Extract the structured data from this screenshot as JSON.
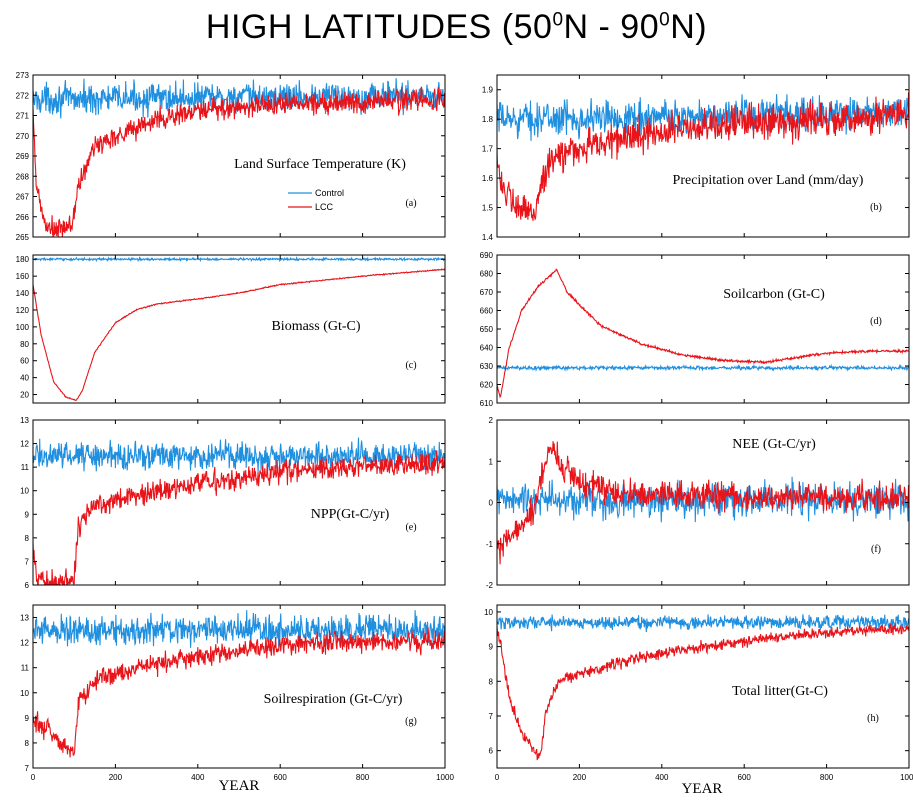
{
  "title": {
    "main": "HIGH LATITUDES (50",
    "sup1": "0",
    "mid": "N - 90",
    "sup2": "0",
    "end": "N)"
  },
  "colors": {
    "control": "#1f8fe0",
    "lcc": "#e8141a",
    "axis": "#000000"
  },
  "chart_data": [
    {
      "id": "a",
      "type": "line",
      "title": "Land Surface Temperature (K)",
      "tag": "(a)",
      "xlim": [
        0,
        1000
      ],
      "ylim": [
        265,
        273
      ],
      "yticks": [
        265,
        266,
        267,
        268,
        269,
        270,
        271,
        272,
        273
      ],
      "xticks": [],
      "xlabel": "",
      "legend": {
        "position": "center-left",
        "entries": [
          "Control",
          "LCC"
        ]
      },
      "series": [
        {
          "name": "Control",
          "noise": 0.45,
          "points": [
            [
              0,
              271.8
            ],
            [
              1000,
              272.0
            ]
          ]
        },
        {
          "name": "LCC",
          "noise": 0.35,
          "points": [
            [
              0,
              271.0
            ],
            [
              8,
              267.5
            ],
            [
              30,
              265.5
            ],
            [
              60,
              265.3
            ],
            [
              95,
              265.6
            ],
            [
              110,
              267.5
            ],
            [
              150,
              269.5
            ],
            [
              200,
              270.0
            ],
            [
              300,
              270.8
            ],
            [
              400,
              271.2
            ],
            [
              600,
              271.6
            ],
            [
              800,
              271.7
            ],
            [
              1000,
              271.8
            ]
          ]
        }
      ]
    },
    {
      "id": "b",
      "type": "line",
      "title": "Precipitation over Land (mm/day)",
      "tag": "(b)",
      "xlim": [
        0,
        1000
      ],
      "ylim": [
        1.4,
        1.95
      ],
      "yticks": [
        1.4,
        1.5,
        1.6,
        1.7,
        1.8,
        1.9
      ],
      "xticks": [],
      "xlabel": "",
      "series": [
        {
          "name": "Control",
          "noise": 0.035,
          "points": [
            [
              0,
              1.8
            ],
            [
              1000,
              1.82
            ]
          ]
        },
        {
          "name": "LCC",
          "noise": 0.035,
          "points": [
            [
              0,
              1.7
            ],
            [
              10,
              1.58
            ],
            [
              40,
              1.5
            ],
            [
              90,
              1.48
            ],
            [
              110,
              1.6
            ],
            [
              150,
              1.68
            ],
            [
              250,
              1.72
            ],
            [
              400,
              1.76
            ],
            [
              600,
              1.79
            ],
            [
              1000,
              1.81
            ]
          ]
        }
      ]
    },
    {
      "id": "c",
      "type": "line",
      "title": "Biomass (Gt-C)",
      "tag": "(c)",
      "xlim": [
        0,
        1000
      ],
      "ylim": [
        10,
        185
      ],
      "yticks": [
        20,
        40,
        60,
        80,
        100,
        120,
        140,
        160,
        180
      ],
      "xticks": [],
      "xlabel": "",
      "series": [
        {
          "name": "Control",
          "noise": 0.8,
          "points": [
            [
              0,
              180
            ],
            [
              1000,
              180
            ]
          ]
        },
        {
          "name": "LCC",
          "noise": 0.4,
          "points": [
            [
              0,
              150
            ],
            [
              20,
              90
            ],
            [
              50,
              35
            ],
            [
              80,
              17
            ],
            [
              105,
              13
            ],
            [
              120,
              25
            ],
            [
              150,
              70
            ],
            [
              200,
              105
            ],
            [
              250,
              120
            ],
            [
              300,
              127
            ],
            [
              400,
              133
            ],
            [
              500,
              140
            ],
            [
              600,
              150
            ],
            [
              800,
              160
            ],
            [
              1000,
              168
            ]
          ]
        }
      ]
    },
    {
      "id": "d",
      "type": "line",
      "title": "Soilcarbon (Gt-C)",
      "tag": "(d)",
      "xlim": [
        0,
        1000
      ],
      "ylim": [
        610,
        690
      ],
      "yticks": [
        610,
        620,
        630,
        640,
        650,
        660,
        670,
        680,
        690
      ],
      "xticks": [],
      "xlabel": "",
      "series": [
        {
          "name": "Control",
          "noise": 0.6,
          "points": [
            [
              0,
              629
            ],
            [
              1000,
              629
            ]
          ]
        },
        {
          "name": "LCC",
          "noise": 0.4,
          "points": [
            [
              0,
              620
            ],
            [
              8,
              613
            ],
            [
              30,
              640
            ],
            [
              60,
              660
            ],
            [
              100,
              673
            ],
            [
              145,
              682
            ],
            [
              170,
              670
            ],
            [
              250,
              652
            ],
            [
              350,
              642
            ],
            [
              450,
              636
            ],
            [
              550,
              633
            ],
            [
              650,
              632
            ],
            [
              800,
              637
            ],
            [
              900,
              638
            ],
            [
              1000,
              638
            ]
          ]
        }
      ]
    },
    {
      "id": "e",
      "type": "line",
      "title": "NPP(Gt-C/yr)",
      "tag": "(e)",
      "xlim": [
        0,
        1000
      ],
      "ylim": [
        6,
        13
      ],
      "yticks": [
        6,
        7,
        8,
        9,
        10,
        11,
        12,
        13
      ],
      "xticks": [],
      "xlabel": "",
      "series": [
        {
          "name": "Control",
          "noise": 0.35,
          "points": [
            [
              0,
              11.5
            ],
            [
              1000,
              11.5
            ]
          ]
        },
        {
          "name": "LCC",
          "noise": 0.3,
          "points": [
            [
              0,
              7.5
            ],
            [
              10,
              6.4
            ],
            [
              40,
              6.1
            ],
            [
              100,
              6.1
            ],
            [
              110,
              8.5
            ],
            [
              150,
              9.4
            ],
            [
              250,
              9.8
            ],
            [
              400,
              10.3
            ],
            [
              600,
              10.8
            ],
            [
              800,
              11.0
            ],
            [
              1000,
              11.2
            ]
          ]
        }
      ]
    },
    {
      "id": "f",
      "type": "line",
      "title": "NEE (Gt-C/yr)",
      "tag": "(f)",
      "xlim": [
        0,
        1000
      ],
      "ylim": [
        -2,
        2
      ],
      "yticks": [
        -2,
        -1,
        0,
        1,
        2
      ],
      "xticks": [],
      "xlabel": "",
      "series": [
        {
          "name": "Control",
          "noise": 0.25,
          "points": [
            [
              0,
              0.05
            ],
            [
              1000,
              0.05
            ]
          ]
        },
        {
          "name": "LCC",
          "noise": 0.2,
          "points": [
            [
              0,
              -1.2
            ],
            [
              15,
              -1.0
            ],
            [
              60,
              -0.6
            ],
            [
              90,
              -0.2
            ],
            [
              110,
              0.8
            ],
            [
              130,
              1.4
            ],
            [
              150,
              1.0
            ],
            [
              200,
              0.5
            ],
            [
              300,
              0.2
            ],
            [
              500,
              0.15
            ],
            [
              1000,
              0.1
            ]
          ]
        }
      ]
    },
    {
      "id": "g",
      "type": "line",
      "title": "Soilrespiration (Gt-C/yr)",
      "tag": "(g)",
      "xlim": [
        0,
        1000
      ],
      "ylim": [
        7,
        13.5
      ],
      "yticks": [
        7,
        8,
        9,
        10,
        11,
        12,
        13
      ],
      "xticks": [
        0,
        200,
        400,
        600,
        800,
        1000
      ],
      "xlabel": "YEAR",
      "series": [
        {
          "name": "Control",
          "noise": 0.35,
          "points": [
            [
              0,
              12.5
            ],
            [
              1000,
              12.5
            ]
          ]
        },
        {
          "name": "LCC",
          "noise": 0.25,
          "points": [
            [
              0,
              9.0
            ],
            [
              40,
              8.5
            ],
            [
              80,
              7.8
            ],
            [
              100,
              7.5
            ],
            [
              110,
              9.5
            ],
            [
              150,
              10.6
            ],
            [
              250,
              11.0
            ],
            [
              350,
              11.3
            ],
            [
              500,
              11.7
            ],
            [
              700,
              12.0
            ],
            [
              1000,
              12.1
            ]
          ]
        }
      ]
    },
    {
      "id": "h",
      "type": "line",
      "title": "Total litter(Gt-C)",
      "tag": "(h)",
      "xlim": [
        0,
        1000
      ],
      "ylim": [
        5.5,
        10.2
      ],
      "yticks": [
        6,
        7,
        8,
        9,
        10
      ],
      "xticks": [
        0,
        200,
        400,
        600,
        800,
        1000
      ],
      "xlabel": "YEAR",
      "series": [
        {
          "name": "Control",
          "noise": 0.12,
          "points": [
            [
              0,
              9.7
            ],
            [
              1000,
              9.7
            ]
          ]
        },
        {
          "name": "LCC",
          "noise": 0.1,
          "points": [
            [
              0,
              9.5
            ],
            [
              10,
              9.0
            ],
            [
              30,
              7.5
            ],
            [
              60,
              6.5
            ],
            [
              90,
              6.0
            ],
            [
              105,
              5.8
            ],
            [
              120,
              7.2
            ],
            [
              150,
              8.0
            ],
            [
              250,
              8.4
            ],
            [
              350,
              8.7
            ],
            [
              500,
              9.0
            ],
            [
              700,
              9.3
            ],
            [
              900,
              9.5
            ],
            [
              1000,
              9.5
            ]
          ]
        }
      ]
    }
  ]
}
